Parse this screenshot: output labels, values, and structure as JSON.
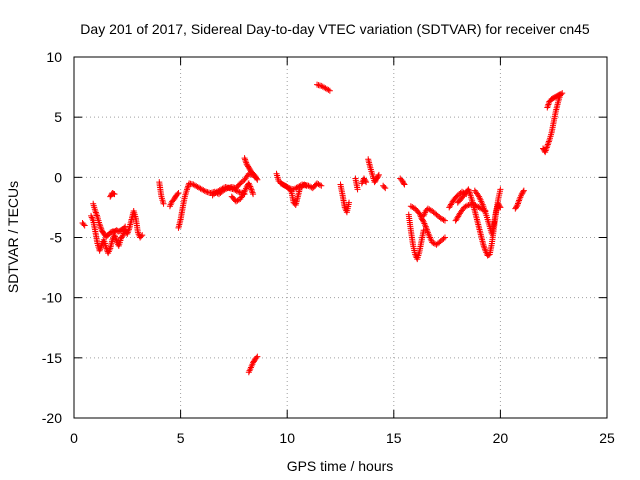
{
  "chart_data": {
    "type": "scatter",
    "title": "Day 201 of 2017, Sidereal Day-to-day VTEC variation (SDTVAR) for receiver cn45",
    "xlabel": "GPS time / hours",
    "ylabel": "SDTVAR / TECUs",
    "xlim": [
      0,
      25
    ],
    "ylim": [
      -20,
      10
    ],
    "xticks": [
      0,
      5,
      10,
      15,
      20,
      25
    ],
    "yticks": [
      -20,
      -15,
      -10,
      -5,
      0,
      5,
      10
    ],
    "grid": true,
    "marker": "+",
    "color": "#ff0000",
    "series": [
      {
        "name": "SDTVAR",
        "segments": [
          [
            [
              0.4,
              -3.8
            ],
            [
              0.5,
              -4.0
            ]
          ],
          [
            [
              0.8,
              -3.2
            ],
            [
              0.9,
              -3.6
            ],
            [
              1.0,
              -4.5
            ],
            [
              1.1,
              -5.5
            ],
            [
              1.2,
              -6.1
            ],
            [
              1.3,
              -5.6
            ],
            [
              1.4,
              -5.2
            ],
            [
              1.5,
              -5.8
            ],
            [
              1.6,
              -6.3
            ],
            [
              1.7,
              -5.9
            ],
            [
              1.8,
              -5.2
            ],
            [
              1.9,
              -4.8
            ],
            [
              2.0,
              -5.3
            ],
            [
              2.1,
              -5.7
            ],
            [
              2.2,
              -5.1
            ],
            [
              2.3,
              -4.8
            ],
            [
              2.4,
              -4.4
            ],
            [
              2.5,
              -4.7
            ],
            [
              2.6,
              -4.2
            ],
            [
              2.7,
              -3.5
            ],
            [
              2.8,
              -2.8
            ],
            [
              2.9,
              -3.4
            ],
            [
              3.0,
              -4.6
            ],
            [
              3.1,
              -5.0
            ],
            [
              3.2,
              -4.8
            ]
          ],
          [
            [
              0.9,
              -2.2
            ],
            [
              1.0,
              -2.8
            ],
            [
              1.1,
              -3.3
            ],
            [
              1.2,
              -3.9
            ],
            [
              1.3,
              -4.4
            ],
            [
              1.4,
              -4.7
            ],
            [
              1.5,
              -4.9
            ],
            [
              1.6,
              -4.8
            ],
            [
              1.7,
              -4.6
            ],
            [
              1.8,
              -4.5
            ],
            [
              1.9,
              -4.5
            ],
            [
              2.0,
              -4.4
            ],
            [
              2.1,
              -4.5
            ],
            [
              2.2,
              -4.4
            ],
            [
              2.3,
              -4.3
            ],
            [
              2.4,
              -4.1
            ]
          ],
          [
            [
              1.7,
              -1.6
            ],
            [
              1.8,
              -1.3
            ],
            [
              1.9,
              -1.4
            ]
          ],
          [
            [
              4.0,
              -0.4
            ],
            [
              4.1,
              -1.6
            ],
            [
              4.2,
              -2.2
            ]
          ],
          [
            [
              4.5,
              -2.4
            ],
            [
              4.6,
              -2.0
            ],
            [
              4.7,
              -1.8
            ],
            [
              4.8,
              -1.5
            ],
            [
              4.9,
              -1.3
            ]
          ],
          [
            [
              4.9,
              -4.2
            ],
            [
              5.0,
              -3.5
            ],
            [
              5.1,
              -2.5
            ],
            [
              5.2,
              -1.6
            ],
            [
              5.3,
              -1.0
            ],
            [
              5.4,
              -0.5
            ],
            [
              5.6,
              -0.6
            ],
            [
              5.8,
              -0.8
            ],
            [
              6.0,
              -1.0
            ],
            [
              6.2,
              -1.2
            ],
            [
              6.4,
              -1.3
            ],
            [
              6.6,
              -1.2
            ],
            [
              6.8,
              -1.4
            ],
            [
              7.0,
              -1.1
            ],
            [
              7.2,
              -0.9
            ],
            [
              7.4,
              -0.8
            ],
            [
              7.6,
              -0.9
            ],
            [
              7.8,
              -0.5
            ],
            [
              8.0,
              -0.2
            ],
            [
              8.2,
              0.3
            ],
            [
              8.4,
              0.2
            ],
            [
              8.5,
              0.0
            ]
          ],
          [
            [
              6.5,
              -1.5
            ],
            [
              6.7,
              -1.2
            ],
            [
              6.9,
              -1.0
            ],
            [
              7.1,
              -0.8
            ],
            [
              7.3,
              -0.9
            ],
            [
              7.5,
              -1.0
            ],
            [
              7.7,
              -1.2
            ],
            [
              7.9,
              -1.3
            ],
            [
              8.0,
              -1.4
            ]
          ],
          [
            [
              7.4,
              -1.6
            ],
            [
              7.6,
              -2.0
            ],
            [
              7.8,
              -1.8
            ],
            [
              8.0,
              -1.2
            ],
            [
              8.1,
              -0.8
            ],
            [
              8.2,
              -0.5
            ],
            [
              8.3,
              -0.9
            ],
            [
              8.4,
              -1.4
            ]
          ],
          [
            [
              8.0,
              1.6
            ],
            [
              8.1,
              1.1
            ],
            [
              8.2,
              0.8
            ],
            [
              8.3,
              0.5
            ],
            [
              8.4,
              0.3
            ],
            [
              8.5,
              0.1
            ],
            [
              8.6,
              -0.2
            ]
          ],
          [
            [
              8.2,
              -16.2
            ],
            [
              8.3,
              -15.8
            ],
            [
              8.4,
              -15.4
            ],
            [
              8.5,
              -15.1
            ],
            [
              8.6,
              -14.9
            ]
          ],
          [
            [
              9.5,
              0.3
            ],
            [
              9.6,
              -0.3
            ],
            [
              9.8,
              -0.6
            ],
            [
              10.0,
              -0.8
            ],
            [
              10.2,
              -1.2
            ],
            [
              10.3,
              -2.1
            ],
            [
              10.4,
              -2.3
            ],
            [
              10.5,
              -1.6
            ],
            [
              10.6,
              -0.9
            ],
            [
              10.8,
              -0.6
            ],
            [
              11.0,
              -0.7
            ],
            [
              11.2,
              -0.9
            ],
            [
              11.4,
              -0.5
            ],
            [
              11.6,
              -0.7
            ]
          ],
          [
            [
              9.7,
              -0.5
            ],
            [
              9.9,
              -0.7
            ],
            [
              10.1,
              -0.9
            ],
            [
              10.3,
              -1.0
            ],
            [
              10.5,
              -0.8
            ],
            [
              10.7,
              -0.6
            ],
            [
              10.9,
              -0.7
            ]
          ],
          [
            [
              11.4,
              7.7
            ],
            [
              11.6,
              7.6
            ],
            [
              11.8,
              7.4
            ],
            [
              12.0,
              7.2
            ]
          ],
          [
            [
              12.5,
              -0.6
            ],
            [
              12.6,
              -1.5
            ],
            [
              12.7,
              -2.5
            ],
            [
              12.8,
              -2.9
            ],
            [
              12.9,
              -2.1
            ]
          ],
          [
            [
              13.2,
              -0.1
            ],
            [
              13.3,
              -1.0
            ]
          ],
          [
            [
              13.5,
              -0.5
            ],
            [
              13.6,
              -0.1
            ],
            [
              13.7,
              -0.4
            ]
          ],
          [
            [
              13.8,
              1.5
            ],
            [
              13.9,
              0.8
            ],
            [
              14.0,
              0.2
            ],
            [
              14.1,
              -0.4
            ],
            [
              14.2,
              -0.1
            ],
            [
              14.3,
              0.2
            ]
          ],
          [
            [
              14.5,
              -0.7
            ],
            [
              14.6,
              -0.9
            ]
          ],
          [
            [
              15.3,
              -0.1
            ],
            [
              15.4,
              -0.3
            ],
            [
              15.5,
              -0.6
            ]
          ],
          [
            [
              15.7,
              -3.1
            ],
            [
              15.8,
              -4.4
            ],
            [
              15.9,
              -5.6
            ],
            [
              16.0,
              -6.4
            ],
            [
              16.1,
              -6.8
            ],
            [
              16.2,
              -6.2
            ],
            [
              16.3,
              -5.3
            ],
            [
              16.4,
              -4.4
            ]
          ],
          [
            [
              15.8,
              -2.4
            ],
            [
              16.0,
              -2.6
            ],
            [
              16.2,
              -3.0
            ],
            [
              16.3,
              -3.4
            ],
            [
              16.4,
              -3.7
            ],
            [
              16.5,
              -4.1
            ],
            [
              16.6,
              -4.6
            ],
            [
              16.7,
              -5.0
            ],
            [
              16.8,
              -5.4
            ],
            [
              17.0,
              -5.6
            ],
            [
              17.2,
              -5.3
            ],
            [
              17.4,
              -5.0
            ]
          ],
          [
            [
              16.4,
              -3.2
            ],
            [
              16.5,
              -2.8
            ],
            [
              16.6,
              -2.6
            ],
            [
              16.8,
              -2.8
            ],
            [
              17.0,
              -3.1
            ],
            [
              17.2,
              -3.4
            ],
            [
              17.4,
              -3.6
            ]
          ],
          [
            [
              17.6,
              -2.5
            ],
            [
              17.8,
              -1.9
            ],
            [
              18.0,
              -1.5
            ],
            [
              18.2,
              -1.2
            ],
            [
              18.4,
              -1.4
            ]
          ],
          [
            [
              17.9,
              -3.6
            ],
            [
              18.1,
              -3.0
            ],
            [
              18.3,
              -2.5
            ],
            [
              18.5,
              -2.3
            ],
            [
              18.7,
              -2.2
            ],
            [
              18.9,
              -2.4
            ],
            [
              19.1,
              -2.6
            ],
            [
              19.3,
              -2.8
            ]
          ],
          [
            [
              18.0,
              -2.1
            ],
            [
              18.2,
              -1.7
            ],
            [
              18.4,
              -1.2
            ],
            [
              18.5,
              -1.0
            ],
            [
              18.6,
              -1.5
            ],
            [
              18.7,
              -2.1
            ],
            [
              18.8,
              -2.8
            ],
            [
              18.9,
              -3.5
            ],
            [
              19.0,
              -4.2
            ],
            [
              19.1,
              -4.9
            ],
            [
              19.2,
              -5.6
            ],
            [
              19.3,
              -6.1
            ],
            [
              19.4,
              -6.5
            ],
            [
              19.5,
              -6.4
            ],
            [
              19.6,
              -5.5
            ],
            [
              19.7,
              -4.2
            ],
            [
              19.8,
              -2.9
            ],
            [
              19.9,
              -1.8
            ],
            [
              20.0,
              -1.0
            ]
          ],
          [
            [
              18.8,
              -1.1
            ],
            [
              19.0,
              -1.6
            ],
            [
              19.2,
              -2.4
            ],
            [
              19.4,
              -3.5
            ],
            [
              19.6,
              -4.7
            ],
            [
              19.7,
              -3.8
            ],
            [
              19.8,
              -2.8
            ],
            [
              19.9,
              -2.2
            ],
            [
              20.0,
              -2.5
            ]
          ],
          [
            [
              20.7,
              -2.6
            ],
            [
              20.8,
              -2.3
            ],
            [
              20.9,
              -1.8
            ],
            [
              21.0,
              -1.4
            ],
            [
              21.1,
              -1.1
            ]
          ],
          [
            [
              22.0,
              2.4
            ],
            [
              22.1,
              2.1
            ],
            [
              22.2,
              2.6
            ],
            [
              22.3,
              3.1
            ],
            [
              22.4,
              3.7
            ],
            [
              22.5,
              4.6
            ],
            [
              22.6,
              5.5
            ],
            [
              22.7,
              6.2
            ],
            [
              22.8,
              6.8
            ],
            [
              22.9,
              7.0
            ]
          ],
          [
            [
              22.2,
              5.8
            ],
            [
              22.3,
              6.3
            ],
            [
              22.4,
              6.5
            ],
            [
              22.5,
              6.6
            ],
            [
              22.6,
              6.7
            ],
            [
              22.7,
              6.8
            ],
            [
              22.8,
              6.9
            ]
          ]
        ]
      }
    ]
  }
}
